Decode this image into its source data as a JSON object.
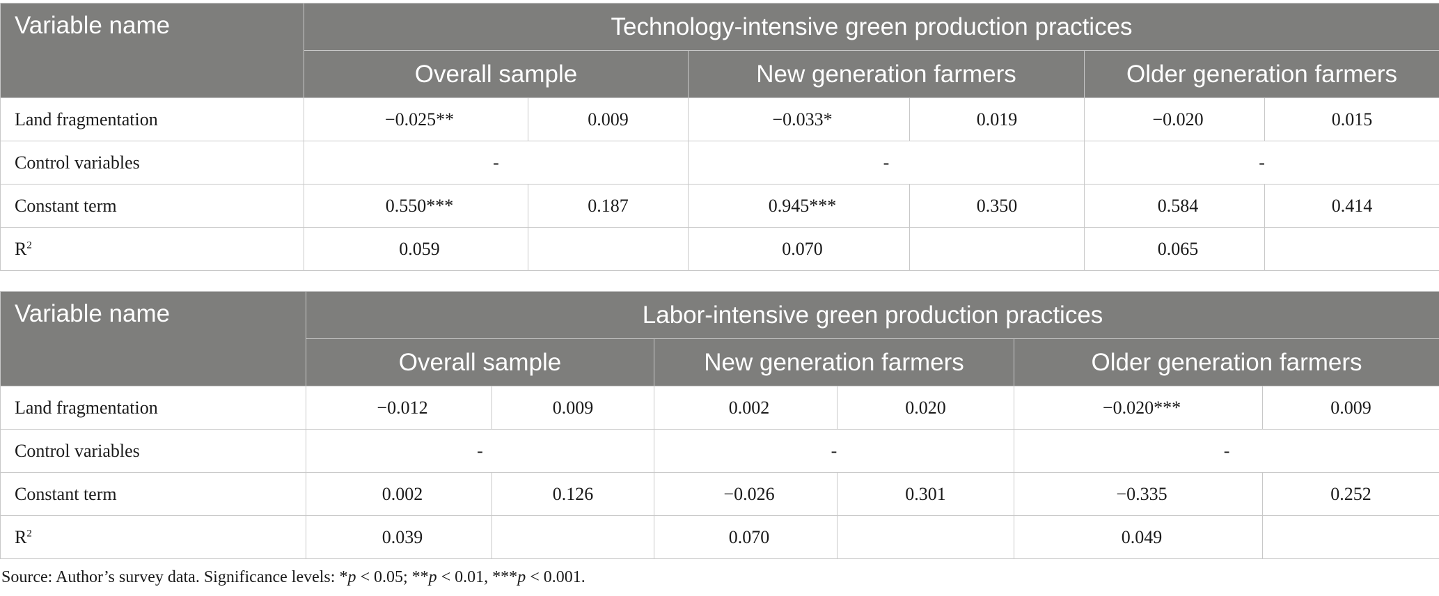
{
  "tables": [
    {
      "var_header": "Variable name",
      "group_header": "Technology-intensive green production practices",
      "samples": [
        "Overall sample",
        "New generation farmers",
        "Older generation farmers"
      ],
      "rows": [
        {
          "label": "Land fragmentation",
          "cells": [
            "−0.025**",
            "0.009",
            "−0.033*",
            "0.019",
            "−0.020",
            "0.015"
          ]
        },
        {
          "label": "Control variables",
          "merged": [
            "-",
            "-",
            "-"
          ]
        },
        {
          "label": "Constant term",
          "cells": [
            "0.550***",
            "0.187",
            "0.945***",
            "0.350",
            "0.584",
            "0.414"
          ]
        },
        {
          "label": "R",
          "label_sup": "2",
          "cells": [
            "0.059",
            "",
            "0.070",
            "",
            "0.065",
            ""
          ]
        }
      ]
    },
    {
      "var_header": "Variable name",
      "group_header": "Labor-intensive green production practices",
      "samples": [
        "Overall sample",
        "New generation farmers",
        "Older generation farmers"
      ],
      "rows": [
        {
          "label": "Land fragmentation",
          "cells": [
            "−0.012",
            "0.009",
            "0.002",
            "0.020",
            "−0.020***",
            "0.009"
          ]
        },
        {
          "label": "Control variables",
          "merged": [
            "-",
            "-",
            "-"
          ]
        },
        {
          "label": "Constant term",
          "cells": [
            "0.002",
            "0.126",
            "−0.026",
            "0.301",
            "−0.335",
            "0.252"
          ]
        },
        {
          "label": "R",
          "label_sup": "2",
          "cells": [
            "0.039",
            "",
            "0.070",
            "",
            "0.049",
            ""
          ]
        }
      ]
    }
  ],
  "note": {
    "prefix": "Source: Author’s survey data. Significance levels: *",
    "p1": "p",
    "mid1": " < 0.05; **",
    "p2": "p",
    "mid2": " < 0.01, ***",
    "p3": "p",
    "suffix": " < 0.001."
  }
}
